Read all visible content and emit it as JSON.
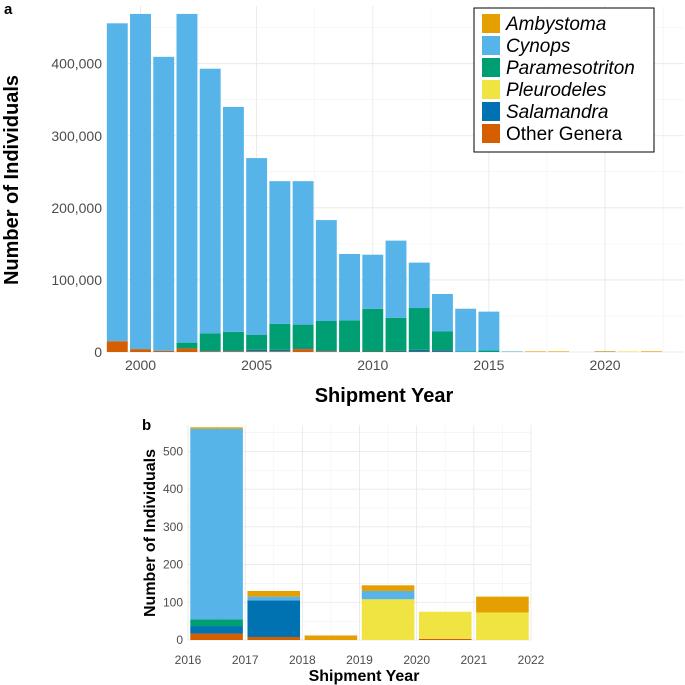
{
  "colors": {
    "Ambystoma": "#E69F00",
    "Cynops": "#56B4E9",
    "Paramesotriton": "#009E73",
    "Pleurodeles": "#F0E442",
    "Salamandra": "#0072B2",
    "Other Genera": "#D55E00"
  },
  "legend": [
    {
      "label": "Ambystoma",
      "italic": true
    },
    {
      "label": "Cynops",
      "italic": true
    },
    {
      "label": "Paramesotriton",
      "italic": true
    },
    {
      "label": "Pleurodeles",
      "italic": true
    },
    {
      "label": "Salamandra",
      "italic": true
    },
    {
      "label": "Other Genera",
      "italic": false
    }
  ],
  "chart_data": [
    {
      "panel": "a",
      "type": "bar",
      "stacked": true,
      "xlabel": "Shipment Year",
      "ylabel": "Number of Individuals",
      "xlim": [
        1998.6,
        2023.4
      ],
      "ylim": [
        0,
        480000
      ],
      "xticks": [
        2000,
        2005,
        2010,
        2015,
        2020
      ],
      "yticks": [
        0,
        100000,
        200000,
        300000,
        400000
      ],
      "ytick_labels": [
        "0",
        "100,000",
        "200,000",
        "300,000",
        "400,000"
      ],
      "legend_position": "top-right",
      "grid": true,
      "categories": [
        1999,
        2000,
        2001,
        2002,
        2003,
        2004,
        2005,
        2006,
        2007,
        2008,
        2009,
        2010,
        2011,
        2012,
        2013,
        2014,
        2015,
        2016,
        2017,
        2018,
        2019,
        2020,
        2021,
        2022
      ],
      "series": [
        {
          "name": "Other Genera",
          "values": [
            15000,
            4000,
            1500,
            5000,
            1000,
            1000,
            1000,
            1000,
            4000,
            1000,
            500,
            500,
            500,
            500,
            500,
            0,
            0,
            0,
            0,
            0,
            0,
            0,
            0,
            0
          ]
        },
        {
          "name": "Salamandra",
          "values": [
            0,
            0,
            0,
            0,
            1000,
            1000,
            2000,
            2000,
            1000,
            1000,
            500,
            500,
            1000,
            2500,
            2000,
            0,
            0,
            0,
            0,
            0,
            0,
            0,
            0,
            0
          ]
        },
        {
          "name": "Paramesotriton",
          "values": [
            0,
            0,
            0,
            8000,
            24000,
            26000,
            21000,
            36000,
            33000,
            41000,
            43000,
            59000,
            46000,
            58000,
            26000,
            1000,
            2000,
            0,
            0,
            0,
            0,
            0,
            0,
            0
          ]
        },
        {
          "name": "Pleurodeles",
          "values": [
            0,
            0,
            0,
            0,
            0,
            0,
            0,
            0,
            0,
            0,
            0,
            0,
            0,
            0,
            0,
            0,
            0,
            0,
            0,
            0,
            0,
            100,
            75,
            70
          ]
        },
        {
          "name": "Cynops",
          "values": [
            441000,
            465000,
            408000,
            456000,
            367000,
            312000,
            245000,
            198000,
            199000,
            140000,
            92000,
            75000,
            107000,
            63000,
            52000,
            59000,
            54000,
            500,
            0,
            0,
            0,
            20,
            0,
            0
          ]
        },
        {
          "name": "Ambystoma",
          "values": [
            0,
            0,
            0,
            0,
            0,
            0,
            0,
            0,
            0,
            0,
            0,
            0,
            0,
            0,
            0,
            0,
            0,
            0,
            10,
            10,
            0,
            10,
            0,
            40
          ]
        }
      ]
    },
    {
      "panel": "b",
      "type": "bar",
      "stacked": true,
      "xlabel": "Shipment Year",
      "ylabel": "Number of Individuals",
      "xlim": [
        2016,
        2022
      ],
      "ylim": [
        0,
        570
      ],
      "xticks": [
        2016,
        2017,
        2018,
        2019,
        2020,
        2021,
        2022
      ],
      "yticks": [
        0,
        100,
        200,
        300,
        400,
        500
      ],
      "grid": true,
      "categories": [
        2016,
        2017,
        2018,
        2019,
        2020,
        2021
      ],
      "series": [
        {
          "name": "Other Genera",
          "values": [
            17,
            8,
            0,
            0,
            3,
            0
          ]
        },
        {
          "name": "Salamandra",
          "values": [
            20,
            97,
            0,
            0,
            0,
            0
          ]
        },
        {
          "name": "Paramesotriton",
          "values": [
            18,
            0,
            0,
            0,
            0,
            0
          ]
        },
        {
          "name": "Pleurodeles",
          "values": [
            0,
            0,
            0,
            108,
            72,
            73
          ]
        },
        {
          "name": "Cynops",
          "values": [
            505,
            10,
            0,
            22,
            0,
            0
          ]
        },
        {
          "name": "Ambystoma",
          "values": [
            4,
            15,
            12,
            15,
            0,
            42
          ]
        }
      ]
    }
  ]
}
